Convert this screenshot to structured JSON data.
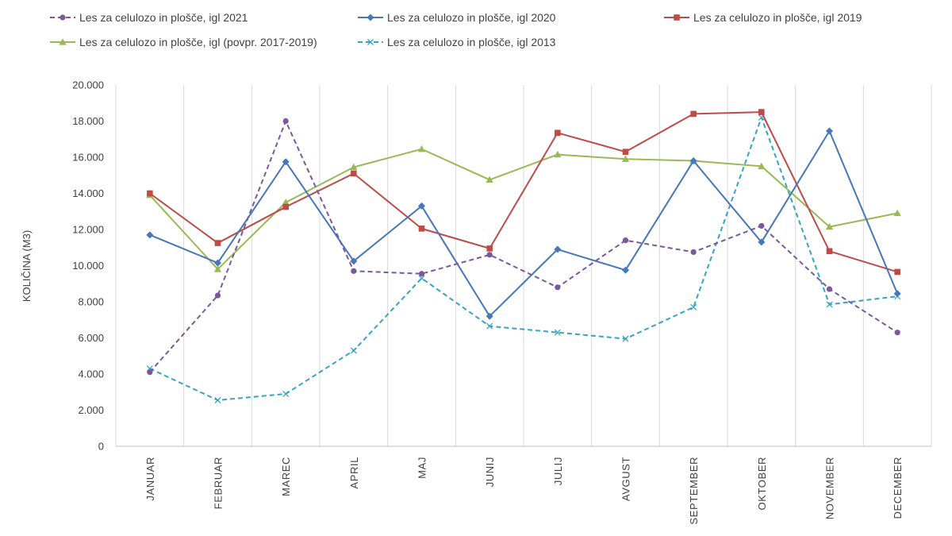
{
  "chart_data": {
    "type": "line",
    "ylabel": "KOLIČINA (M3)",
    "xlabel": "",
    "ylim": [
      0,
      20000
    ],
    "y_ticks": [
      0,
      2000,
      4000,
      6000,
      8000,
      10000,
      12000,
      14000,
      16000,
      18000,
      20000
    ],
    "y_tick_labels": [
      "0",
      "2.000",
      "4.000",
      "6.000",
      "8.000",
      "10.000",
      "12.000",
      "14.000",
      "16.000",
      "18.000",
      "20.000"
    ],
    "grid": "vertical",
    "legend_position": "top",
    "categories": [
      "JANUAR",
      "FEBRUAR",
      "MAREC",
      "APRIL",
      "MAJ",
      "JUNIJ",
      "JULIJ",
      "AVGUST",
      "SEPTEMBER",
      "OKTOBER",
      "NOVEMBER",
      "DECEMBER"
    ],
    "series": [
      {
        "name": "Les za celulozo in plošče, igl 2021",
        "color": "#7b579d",
        "dash": "dashed",
        "marker": "circle",
        "values": [
          4100,
          8350,
          18000,
          9700,
          9550,
          10600,
          8800,
          11400,
          10750,
          12200,
          8700,
          6300
        ]
      },
      {
        "name": "Les za celulozo in plošče, igl 2020",
        "color": "#4677b8",
        "dash": "solid",
        "marker": "diamond",
        "values": [
          11700,
          10150,
          15750,
          10250,
          13300,
          7200,
          10900,
          9750,
          15800,
          11300,
          17450,
          8450
        ]
      },
      {
        "name": "Les za celulozo in plošče, igl 2019",
        "color": "#be4b48",
        "dash": "solid",
        "marker": "square",
        "values": [
          14000,
          11250,
          13250,
          15100,
          12050,
          10950,
          17350,
          16300,
          18400,
          18500,
          10800,
          9650
        ]
      },
      {
        "name": "Les za celulozo in plošče, igl (povpr. 2017-2019)",
        "color": "#98b954",
        "dash": "solid",
        "marker": "triangle",
        "values": [
          13900,
          9800,
          13500,
          15450,
          16450,
          14750,
          16150,
          15900,
          15800,
          15500,
          12150,
          12900
        ]
      },
      {
        "name": "Les za celulozo in plošče, igl 2013",
        "color": "#34a4c2",
        "dash": "dashed",
        "marker": "x",
        "values": [
          4300,
          2550,
          2900,
          5300,
          9300,
          6650,
          6300,
          5950,
          7700,
          18200,
          7850,
          8300
        ]
      }
    ]
  }
}
